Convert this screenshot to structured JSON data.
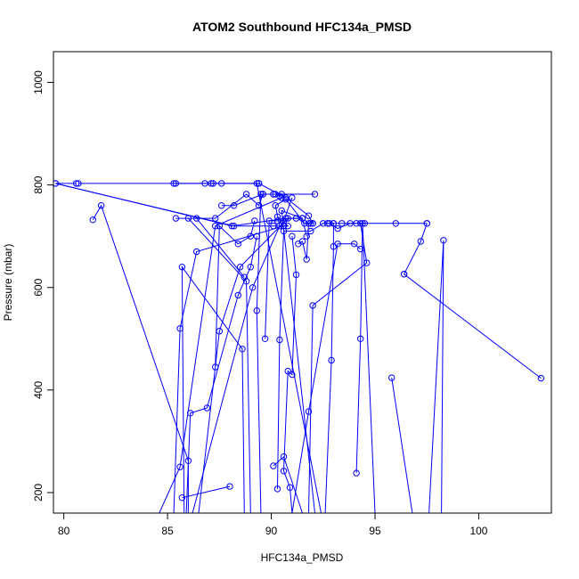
{
  "chart_data": {
    "type": "line",
    "title": "ATOM2 Southbound HFC134a_PMSD",
    "xlabel": "HFC134a_PMSD",
    "ylabel": "Pressure (mbar)",
    "xlim": [
      79.5,
      103.5
    ],
    "ylim": [
      1060,
      160
    ],
    "y_inverted": true,
    "x_ticks": [
      80,
      85,
      90,
      95,
      100
    ],
    "x_tick_labels": [
      "80",
      "85",
      "90",
      "95",
      "100"
    ],
    "y_ticks": [
      200,
      400,
      600,
      800,
      1000
    ],
    "y_tick_labels": [
      "200",
      "400",
      "600",
      "800",
      "1000"
    ],
    "grid": false,
    "legend": "none",
    "color": "#0000ff",
    "marker": "open-circle",
    "series": [
      {
        "points": [
          [
            84.6,
            160
          ],
          [
            85.6,
            250
          ],
          [
            87.3,
            720
          ],
          [
            90.5,
            775
          ]
        ]
      },
      {
        "points": [
          [
            85.3,
            160
          ],
          [
            85.6,
            520
          ],
          [
            86.4,
            670
          ],
          [
            90.6,
            720
          ]
        ]
      },
      {
        "points": [
          [
            85.7,
            190
          ],
          [
            88.0,
            212
          ]
        ]
      },
      {
        "points": [
          [
            85.8,
            160
          ],
          [
            85.7,
            640
          ],
          [
            88.6,
            480
          ],
          [
            88.7,
            160
          ]
        ]
      },
      {
        "points": [
          [
            86.0,
            160
          ],
          [
            86.0,
            262
          ],
          [
            81.8,
            760
          ],
          [
            81.4,
            732
          ]
        ]
      },
      {
        "points": [
          [
            86.5,
            160
          ],
          [
            87.5,
            515
          ],
          [
            88.5,
            640
          ],
          [
            90.8,
            735
          ],
          [
            91.5,
            735
          ],
          [
            91.7,
            700
          ]
        ]
      },
      {
        "points": [
          [
            85.9,
            160
          ],
          [
            86.1,
            355
          ],
          [
            86.9,
            365
          ],
          [
            88.4,
            585
          ],
          [
            89.0,
            640
          ],
          [
            89.3,
            700
          ]
        ]
      },
      {
        "points": [
          [
            87.3,
            445
          ],
          [
            87.5,
            720
          ],
          [
            88.4,
            685
          ],
          [
            89.0,
            700
          ],
          [
            89.2,
            730
          ]
        ]
      },
      {
        "points": [
          [
            89.5,
            160
          ],
          [
            89.3,
            555
          ],
          [
            89.5,
            782
          ],
          [
            90.1,
            782
          ],
          [
            90.5,
            782
          ],
          [
            92.1,
            782
          ]
        ]
      },
      {
        "points": [
          [
            89.0,
            160
          ],
          [
            88.8,
            612
          ],
          [
            86.0,
            735
          ]
        ]
      },
      {
        "points": [
          [
            90.3,
            207
          ],
          [
            90.4,
            498
          ],
          [
            90.6,
            710
          ],
          [
            91.9,
            710
          ],
          [
            92.5,
            725
          ],
          [
            93.0,
            725
          ]
        ]
      },
      {
        "points": [
          [
            91.0,
            160
          ],
          [
            90.9,
            210
          ],
          [
            90.6,
            242
          ],
          [
            90.8,
            437
          ],
          [
            91.0,
            430
          ],
          [
            91.2,
            625
          ],
          [
            91.0,
            700
          ]
        ]
      },
      {
        "points": [
          [
            90.1,
            252
          ],
          [
            90.6,
            270
          ],
          [
            91.5,
            160
          ]
        ]
      },
      {
        "points": [
          [
            91.0,
            160
          ],
          [
            91.8,
            358
          ],
          [
            93.2,
            685
          ],
          [
            94.0,
            685
          ],
          [
            94.3,
            675
          ]
        ]
      },
      {
        "points": [
          [
            91.8,
            160
          ],
          [
            92.0,
            565
          ],
          [
            94.6,
            648
          ],
          [
            94.3,
            725
          ],
          [
            96.0,
            725
          ],
          [
            97.5,
            725
          ]
        ]
      },
      {
        "points": [
          [
            92.6,
            160
          ],
          [
            92.9,
            458
          ],
          [
            93.0,
            680
          ],
          [
            93.0,
            725
          ],
          [
            93.4,
            725
          ],
          [
            94.5,
            725
          ]
        ]
      },
      {
        "points": [
          [
            94.1,
            238
          ],
          [
            94.3,
            500
          ],
          [
            94.4,
            725
          ],
          [
            95.0,
            160
          ]
        ]
      },
      {
        "points": [
          [
            95.8,
            424
          ],
          [
            96.8,
            160
          ]
        ]
      },
      {
        "points": [
          [
            97.6,
            160
          ],
          [
            98.3,
            692
          ],
          [
            98.2,
            160
          ]
        ]
      },
      {
        "points": [
          [
            96.4,
            626
          ],
          [
            97.2,
            690
          ],
          [
            97.5,
            725
          ]
        ]
      },
      {
        "points": [
          [
            103.0,
            423
          ],
          [
            96.4,
            626
          ]
        ]
      },
      {
        "points": [
          [
            89.7,
            500
          ],
          [
            89.9,
            730
          ],
          [
            90.3,
            730
          ],
          [
            90.6,
            730
          ],
          [
            91.0,
            775
          ]
        ]
      },
      {
        "points": [
          [
            88.7,
            620
          ],
          [
            86.4,
            735
          ],
          [
            85.4,
            735
          ],
          [
            87.3,
            735
          ],
          [
            88.8,
            782
          ],
          [
            89.4,
            760
          ],
          [
            89.6,
            782
          ]
        ]
      },
      {
        "points": [
          [
            80.6,
            803
          ],
          [
            79.6,
            803
          ],
          [
            88.2,
            720
          ],
          [
            90.1,
            720
          ],
          [
            90.8,
            720
          ],
          [
            90.3,
            738
          ]
        ]
      },
      {
        "points": [
          [
            85.3,
            803
          ],
          [
            86.8,
            803
          ],
          [
            87.1,
            803
          ],
          [
            87.6,
            803
          ],
          [
            89.4,
            803
          ],
          [
            89.3,
            803
          ],
          [
            92.4,
            160
          ]
        ]
      },
      {
        "points": [
          [
            79.6,
            803
          ],
          [
            88.1,
            720
          ],
          [
            90.7,
            735
          ],
          [
            91.2,
            735
          ],
          [
            91.5,
            735
          ]
        ]
      },
      {
        "points": [
          [
            80.7,
            803
          ],
          [
            85.4,
            803
          ],
          [
            87.2,
            803
          ],
          [
            89.4,
            803
          ],
          [
            90.7,
            775
          ],
          [
            91.8,
            740
          ],
          [
            92.0,
            725
          ]
        ]
      },
      {
        "points": [
          [
            87.6,
            760
          ],
          [
            88.2,
            760
          ],
          [
            89.6,
            782
          ],
          [
            90.2,
            782
          ],
          [
            90.4,
            778
          ]
        ]
      },
      {
        "points": [
          [
            91.3,
            685
          ],
          [
            91.5,
            690
          ],
          [
            91.7,
            655
          ],
          [
            91.8,
            725
          ],
          [
            91.9,
            725
          ]
        ]
      },
      {
        "points": [
          [
            92.7,
            725
          ],
          [
            92.8,
            725
          ],
          [
            93.2,
            715
          ],
          [
            93.8,
            725
          ],
          [
            94.1,
            725
          ]
        ]
      },
      {
        "points": [
          [
            91.5,
            735
          ],
          [
            90.5,
            750
          ],
          [
            92.1,
            160
          ]
        ]
      },
      {
        "points": [
          [
            86.2,
            160
          ],
          [
            89.1,
            600
          ],
          [
            90.4,
            720
          ],
          [
            90.2,
            760
          ],
          [
            90.7,
            772
          ],
          [
            91.6,
            725
          ],
          [
            92.0,
            725
          ]
        ]
      }
    ]
  }
}
